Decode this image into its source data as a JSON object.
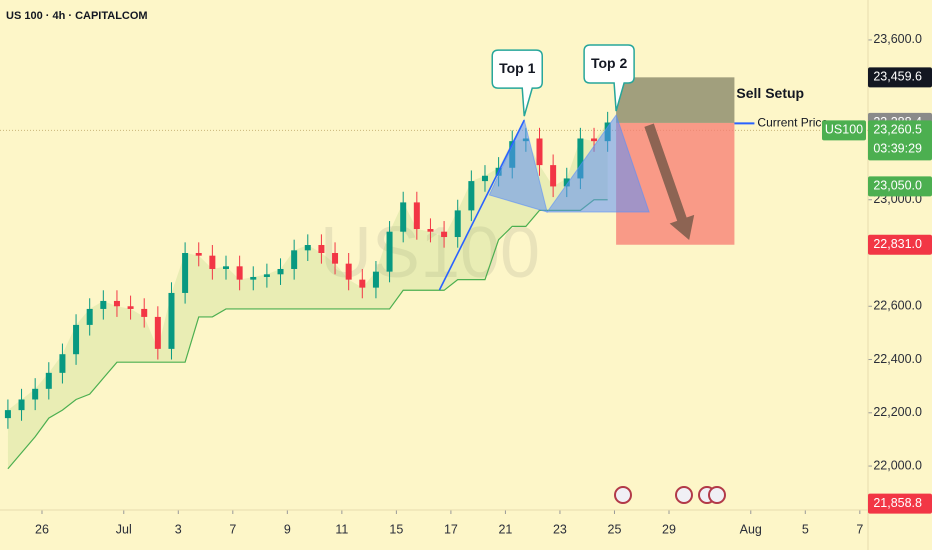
{
  "header": {
    "title": "US 100 · 4h · CAPITALCOM"
  },
  "chart_data": {
    "type": "candlestick",
    "watermark": "US100",
    "x": [
      -1.25,
      -0.75,
      -0.25,
      0.25,
      0.75,
      1.25,
      1.75,
      2.25,
      2.75,
      3.25,
      3.75,
      4.25,
      4.75,
      5.25,
      5.75,
      6.25,
      6.75,
      7.25,
      7.75,
      8.25,
      8.75,
      9.25,
      9.75,
      10.25,
      10.75,
      11.25,
      11.75,
      12.25,
      12.75,
      13.25,
      13.75,
      14.25,
      14.75,
      15.25,
      15.75,
      16.25,
      16.75,
      17.25,
      17.75,
      18.25,
      18.75,
      19.25,
      19.75,
      20.25,
      20.75
    ],
    "open": [
      22180,
      22210,
      22250,
      22290,
      22350,
      22420,
      22530,
      22590,
      22620,
      22600,
      22590,
      22560,
      22440,
      22650,
      22800,
      22790,
      22740,
      22750,
      22700,
      22710,
      22720,
      22740,
      22810,
      22830,
      22800,
      22760,
      22700,
      22670,
      22730,
      22880,
      22990,
      22890,
      22880,
      22860,
      22960,
      23070,
      23090,
      23120,
      23220,
      23230,
      23130,
      23050,
      23080,
      23230,
      23220
    ],
    "high": [
      22250,
      22290,
      22330,
      22390,
      22460,
      22570,
      22630,
      22660,
      22660,
      22640,
      22630,
      22600,
      22690,
      22840,
      22840,
      22830,
      22790,
      22790,
      22750,
      22760,
      22780,
      22850,
      22870,
      22870,
      22840,
      22800,
      22740,
      22770,
      22920,
      23030,
      23030,
      22930,
      22920,
      23000,
      23110,
      23130,
      23160,
      23260,
      23270,
      23270,
      23170,
      23120,
      23270,
      23270,
      23330
    ],
    "low": [
      22140,
      22170,
      22210,
      22250,
      22310,
      22380,
      22490,
      22550,
      22560,
      22550,
      22520,
      22400,
      22400,
      22610,
      22750,
      22700,
      22700,
      22660,
      22660,
      22670,
      22680,
      22700,
      22770,
      22760,
      22720,
      22660,
      22630,
      22630,
      22690,
      22840,
      22850,
      22840,
      22820,
      22820,
      22920,
      23030,
      23050,
      23080,
      23180,
      23090,
      23010,
      23010,
      23040,
      23180,
      23180
    ],
    "close": [
      22210,
      22250,
      22290,
      22350,
      22420,
      22530,
      22590,
      22620,
      22600,
      22590,
      22560,
      22440,
      22650,
      22800,
      22790,
      22740,
      22750,
      22700,
      22710,
      22720,
      22740,
      22810,
      22830,
      22800,
      22760,
      22700,
      22670,
      22730,
      22880,
      22990,
      22890,
      22880,
      22860,
      22960,
      23070,
      23090,
      23120,
      23220,
      23230,
      23130,
      23050,
      23080,
      23230,
      23220,
      23290
    ],
    "up_color": "#089981",
    "down_color": "#f23645",
    "support": {
      "color": "#4caf50",
      "values": [
        21990,
        22050,
        22110,
        22180,
        22210,
        22250,
        22270,
        22330,
        22390,
        22390,
        22390,
        22390,
        22390,
        22390,
        22560,
        22560,
        22590,
        22590,
        22590,
        22590,
        22590,
        22590,
        22590,
        22590,
        22590,
        22590,
        22590,
        22590,
        22590,
        22660,
        22660,
        22660,
        22660,
        22700,
        22700,
        22700,
        22850,
        22900,
        22900,
        22960,
        22960,
        22960,
        22960,
        23000,
        23000
      ]
    },
    "xlim": [
      -1.54,
      30.3
    ],
    "xticks": [
      {
        "value": 0,
        "label": "26"
      },
      {
        "value": 3,
        "label": "Jul"
      },
      {
        "value": 5,
        "label": "3"
      },
      {
        "value": 7,
        "label": "7"
      },
      {
        "value": 9,
        "label": "9"
      },
      {
        "value": 11,
        "label": "11"
      },
      {
        "value": 13,
        "label": "15"
      },
      {
        "value": 15,
        "label": "17"
      },
      {
        "value": 17,
        "label": "21"
      },
      {
        "value": 19,
        "label": "23"
      },
      {
        "value": 21,
        "label": "25"
      },
      {
        "value": 23,
        "label": "29"
      },
      {
        "value": 26,
        "label": "Aug"
      },
      {
        "value": 28,
        "label": "5"
      },
      {
        "value": 30,
        "label": "7"
      }
    ],
    "ylim": [
      21835,
      23750
    ],
    "yticks": [
      {
        "value": 22000,
        "label": "22,000.0"
      },
      {
        "value": 22200,
        "label": "22,200.0"
      },
      {
        "value": 22400,
        "label": "22,400.0"
      },
      {
        "value": 22600,
        "label": "22,600.0"
      },
      {
        "value": 23000,
        "label": "23,000.0"
      },
      {
        "value": 23600,
        "label": "23,600.0"
      }
    ],
    "current_price": {
      "value": 23260.5,
      "label": "23,260.5",
      "symbol": "US100",
      "countdown": "03:39:29",
      "text": "Current Price",
      "color": "#4caf50"
    },
    "price_tags": [
      {
        "value": 23459.6,
        "label": "23,459.6",
        "color": "#131722"
      },
      {
        "value": 23288.4,
        "label": "23,288.4",
        "color": "#8a8a8a"
      },
      {
        "value": 23050,
        "label": "23,050.0",
        "color": "#4caf50"
      },
      {
        "value": 22831,
        "label": "22,831.0",
        "color": "#f23645"
      },
      {
        "value": 21858.8,
        "label": "21,858.8",
        "color": "#f23645"
      }
    ],
    "sell_setup": {
      "label": "Sell Setup",
      "x": [
        21.06,
        25.4
      ]
    },
    "trendline": {
      "x": [
        14.58,
        17.69
      ],
      "y": [
        22661,
        23299
      ],
      "color": "#2962ff"
    },
    "triangles": [
      {
        "x": [
          16.41,
          17.69,
          18.53
        ],
        "y": [
          23018,
          23299,
          22954
        ]
      },
      {
        "x": [
          18.53,
          21.06,
          22.27
        ],
        "y": [
          22954,
          23318,
          22954
        ]
      }
    ],
    "arrow": {
      "x": [
        22.27,
        23.74
      ],
      "y": [
        23280,
        22849
      ]
    },
    "callouts": [
      {
        "text": "Top 1",
        "x": 17.69,
        "y": 23299
      },
      {
        "text": "Top 2",
        "x": 21.06,
        "y": 23318
      }
    ]
  }
}
